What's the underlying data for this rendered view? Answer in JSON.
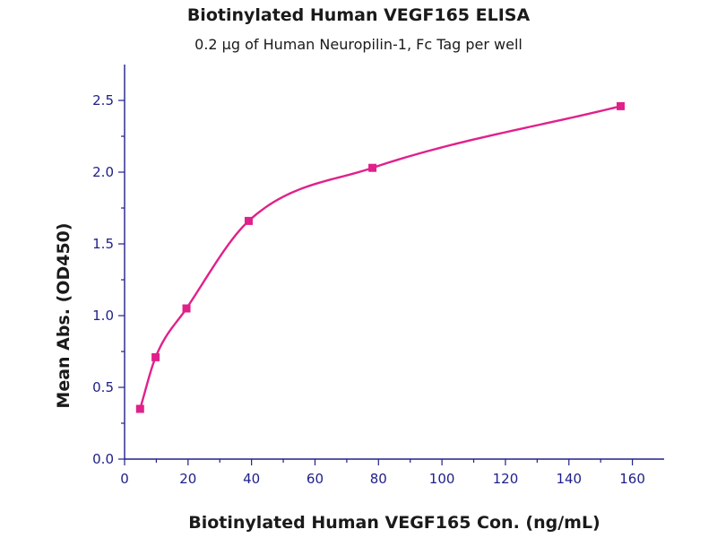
{
  "chart_data": {
    "type": "scatter",
    "title": "Biotinylated Human VEGF165 ELISA",
    "subtitle": "0.2 μg of Human Neuropilin-1, Fc Tag per well",
    "xlabel": "Biotinylated Human VEGF165 Con. (ng/mL)",
    "ylabel": "Mean Abs. (OD450)",
    "xlim": [
      0,
      170
    ],
    "ylim": [
      0,
      2.75
    ],
    "xticks": [
      0,
      20,
      40,
      60,
      80,
      100,
      120,
      140,
      160
    ],
    "yticks": [
      0.0,
      0.5,
      1.0,
      1.5,
      2.0,
      2.5
    ],
    "xtick_labels": [
      "0",
      "20",
      "40",
      "60",
      "80",
      "100",
      "120",
      "140",
      "160"
    ],
    "ytick_labels": [
      "0.0",
      "0.5",
      "1.0",
      "1.5",
      "2.0",
      "2.5"
    ],
    "grid": false,
    "series": [
      {
        "x": [
          4.88,
          9.77,
          19.5,
          39.1,
          78.1,
          156.3
        ],
        "y": [
          0.35,
          0.71,
          1.05,
          1.66,
          2.03,
          2.46
        ],
        "marker": "square",
        "fit_curve": true,
        "color": "#e0218a"
      }
    ],
    "axis_color": "#20208a"
  }
}
